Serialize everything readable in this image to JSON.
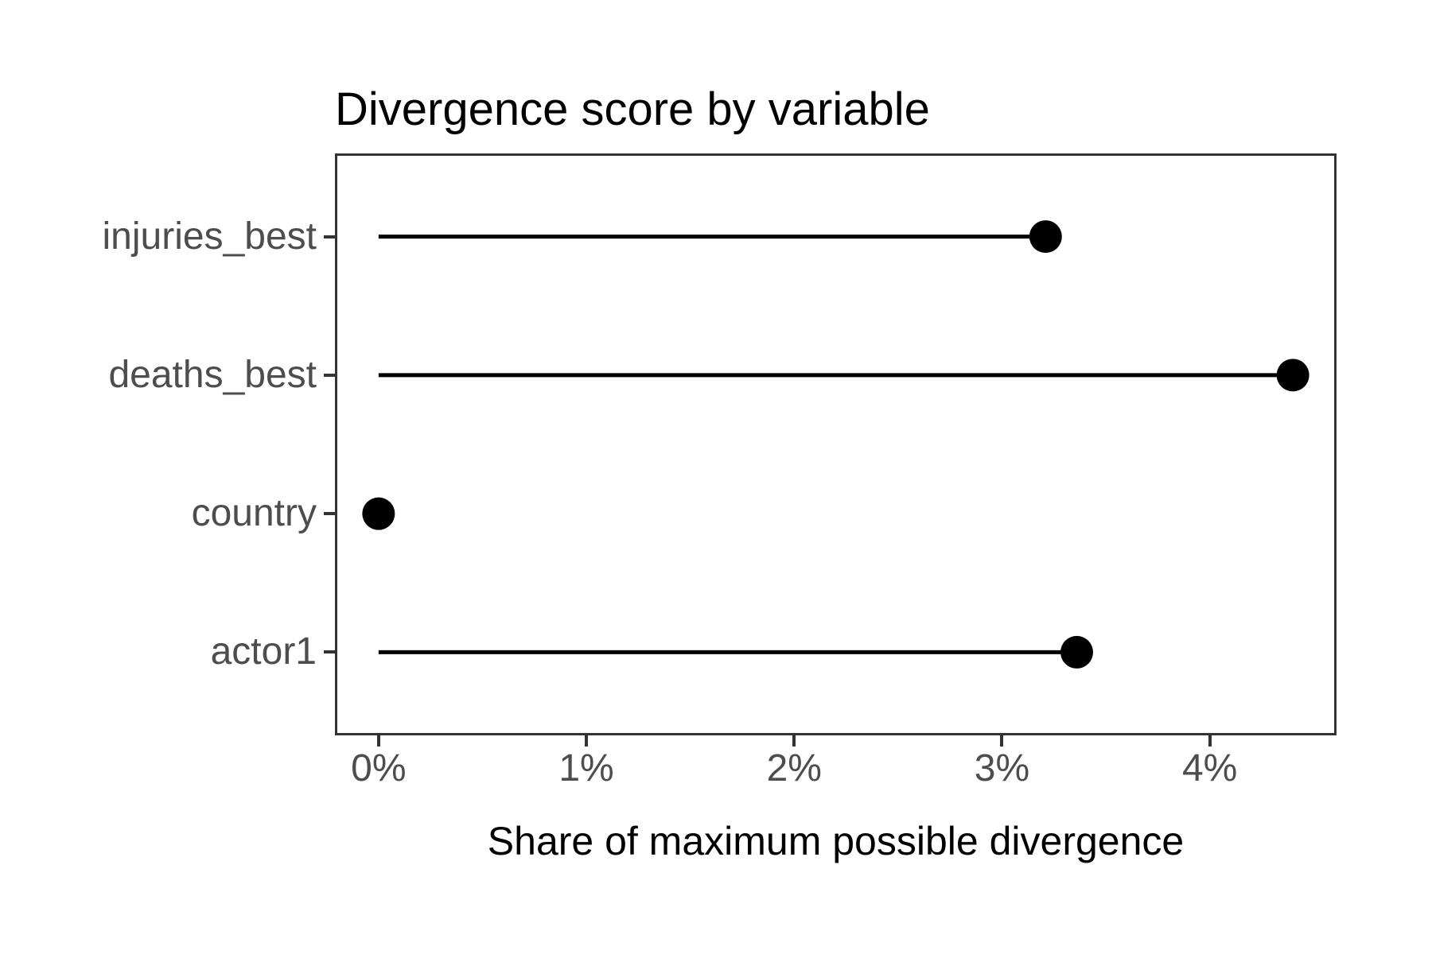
{
  "chart_data": {
    "type": "scatter",
    "variant": "lollipop",
    "title": "Divergence score by variable",
    "xlabel": "Share of maximum possible divergence",
    "ylabel": "",
    "categories": [
      "injuries_best",
      "deaths_best",
      "country",
      "actor1"
    ],
    "values": [
      3.21,
      4.4,
      0,
      3.36
    ],
    "unit": "%",
    "x_ticks": [
      0,
      1,
      2,
      3,
      4
    ],
    "x_tick_labels": [
      "0%",
      "1%",
      "2%",
      "3%",
      "4%"
    ],
    "xlim": [
      -0.21,
      4.61
    ],
    "grid": "off",
    "legend": "none",
    "colors": {
      "stem": "#000000",
      "dot": "#000000",
      "panel_border": "#333333",
      "axis_text": "#4d4d4d",
      "title": "#000000",
      "background": "#ffffff"
    }
  }
}
